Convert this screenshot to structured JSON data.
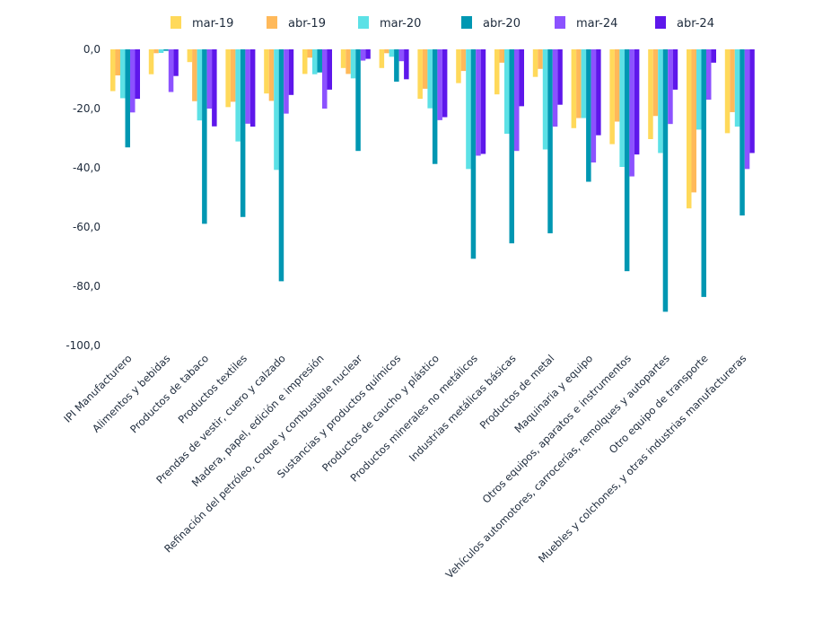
{
  "chart_data": {
    "type": "bar",
    "title": "",
    "xlabel": "",
    "ylabel": "",
    "ylim": [
      -100,
      0
    ],
    "yticks": [
      0,
      -20,
      -40,
      -60,
      -80,
      -100
    ],
    "ytick_labels": [
      "0,0",
      "-20,0",
      "-40,0",
      "-60,0",
      "-80,0",
      "-100,0"
    ],
    "grid": false,
    "legend_position": "top",
    "categories": [
      "IPI Manufacturero",
      "Alimentos y bebidas",
      "Productos de tabaco",
      "Productos textiles",
      "Prendas de vestir, cuero y calzado",
      "Madera, papel, edición e impresión",
      "Refinación del petróleo, coque y combustible nuclear",
      "Sustancias y productos químicos",
      "Productos de caucho y plástico",
      "Productos minerales no metálicos",
      "Industrias metálicas básicas",
      "Productos de metal",
      "Maquinaria y equipo",
      "Otros equipos, aparatos e instrumentos",
      "Vehículos automotores, carrocerías, remolques y autopartes",
      "Otro equipo de transporte",
      "Muebles y colchones, y otras industrias manufactureras"
    ],
    "series": [
      {
        "name": "mar-19",
        "color": "#FFD95A",
        "values": [
          -14.1,
          -8.4,
          -4.3,
          -19.5,
          -14.9,
          -8.3,
          -6.3,
          -6.3,
          -16.7,
          -11.4,
          -15.2,
          -9.3,
          -26.6,
          -32.0,
          -30.3,
          -53.7,
          -28.3
        ]
      },
      {
        "name": "abr-19",
        "color": "#FFB95A",
        "values": [
          -8.8,
          -1.3,
          -17.5,
          -17.7,
          -17.4,
          -2.8,
          -8.3,
          -1.3,
          -13.3,
          -7.3,
          -4.5,
          -6.6,
          -23.2,
          -24.4,
          -22.5,
          -48.3,
          -21.2
        ]
      },
      {
        "name": "mar-20",
        "color": "#5CE1E6",
        "values": [
          -16.5,
          -1.2,
          -24.0,
          -31.1,
          -40.7,
          -8.4,
          -9.8,
          -2.5,
          -19.9,
          -40.4,
          -28.5,
          -33.8,
          -23.2,
          -39.7,
          -35.0,
          -27.1,
          -26.1
        ]
      },
      {
        "name": "abr-20",
        "color": "#0097B2",
        "values": [
          -33.1,
          -0.5,
          -58.9,
          -56.6,
          -78.3,
          -7.8,
          -34.3,
          -10.9,
          -38.7,
          -70.7,
          -65.5,
          -62.1,
          -44.7,
          -74.9,
          -88.6,
          -83.6,
          -56.1
        ]
      },
      {
        "name": "mar-24",
        "color": "#8C52FF",
        "values": [
          -21.3,
          -14.4,
          -20.0,
          -25.1,
          -21.7,
          -20.0,
          -3.8,
          -4.0,
          -23.9,
          -35.9,
          -34.3,
          -26.1,
          -38.2,
          -42.9,
          -25.2,
          -17.0,
          -40.4
        ]
      },
      {
        "name": "abr-24",
        "color": "#5E17EB",
        "values": [
          -16.7,
          -9.0,
          -26.0,
          -26.1,
          -15.4,
          -13.6,
          -3.2,
          -10.1,
          -22.9,
          -35.3,
          -19.2,
          -18.7,
          -29.0,
          -35.5,
          -13.6,
          -4.5,
          -35.0
        ]
      }
    ]
  }
}
